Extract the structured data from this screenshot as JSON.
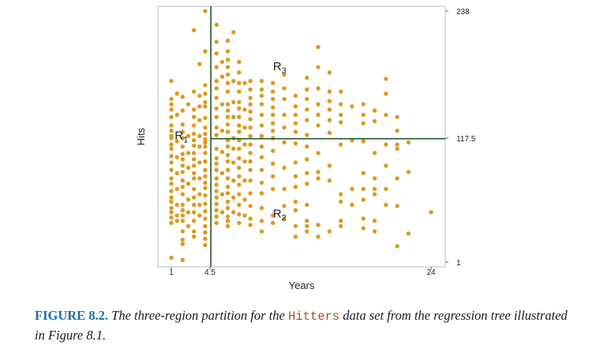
{
  "chart_data": {
    "type": "scatter",
    "xlabel": "Years",
    "ylabel": "Hits",
    "xlim": [
      0,
      25
    ],
    "ylim": [
      0,
      240
    ],
    "x_ticks": [
      "1",
      "4.5",
      "24"
    ],
    "y_ticks": [
      "1",
      "117.5",
      "238"
    ],
    "point_color": "#dc9a1e",
    "line_color": "#1f5a2a",
    "partition": {
      "vertical_split": {
        "variable": "Years",
        "value": 4.5
      },
      "horizontal_split": {
        "variable": "Hits",
        "value": 117.5,
        "applies_when": "Years >= 4.5"
      }
    },
    "regions": [
      {
        "name": "R",
        "subscript": "1",
        "x": 1.3,
        "y": 117
      },
      {
        "name": "R",
        "subscript": "2",
        "x": 10.0,
        "y": 43
      },
      {
        "name": "R",
        "subscript": "3",
        "x": 10.0,
        "y": 182
      }
    ],
    "points": [
      [
        1,
        5
      ],
      [
        2,
        3
      ],
      [
        4,
        238
      ],
      [
        3,
        220
      ],
      [
        1,
        172
      ],
      [
        1,
        155
      ],
      [
        1,
        150
      ],
      [
        1,
        145
      ],
      [
        1,
        138
      ],
      [
        1,
        130
      ],
      [
        1,
        125
      ],
      [
        1,
        120
      ],
      [
        1,
        118
      ],
      [
        1,
        112
      ],
      [
        1,
        108
      ],
      [
        1,
        101
      ],
      [
        1,
        95
      ],
      [
        1,
        88
      ],
      [
        1,
        80
      ],
      [
        1,
        75
      ],
      [
        1,
        68
      ],
      [
        1,
        62
      ],
      [
        1,
        58
      ],
      [
        1,
        52
      ],
      [
        1,
        48
      ],
      [
        1,
        43
      ],
      [
        1,
        38
      ],
      [
        1.5,
        160
      ],
      [
        1.5,
        140
      ],
      [
        1.5,
        115
      ],
      [
        1.5,
        100
      ],
      [
        1.5,
        85
      ],
      [
        1.5,
        70
      ],
      [
        1.5,
        55
      ],
      [
        1.5,
        45
      ],
      [
        1.5,
        40
      ],
      [
        2,
        157
      ],
      [
        2,
        144
      ],
      [
        2,
        131
      ],
      [
        2,
        124
      ],
      [
        2,
        118
      ],
      [
        2,
        110
      ],
      [
        2,
        103
      ],
      [
        2,
        98
      ],
      [
        2,
        92
      ],
      [
        2,
        86
      ],
      [
        2,
        78
      ],
      [
        2,
        72
      ],
      [
        2,
        65
      ],
      [
        2,
        55
      ],
      [
        2,
        50
      ],
      [
        2,
        45
      ],
      [
        2,
        40
      ],
      [
        2,
        30
      ],
      [
        2,
        22
      ],
      [
        2,
        18
      ],
      [
        2.5,
        150
      ],
      [
        2.5,
        120
      ],
      [
        2.5,
        104
      ],
      [
        2.5,
        90
      ],
      [
        2.5,
        75
      ],
      [
        2.5,
        60
      ],
      [
        2.5,
        48
      ],
      [
        2.5,
        35
      ],
      [
        3,
        162
      ],
      [
        3,
        145
      ],
      [
        3,
        138
      ],
      [
        3,
        130
      ],
      [
        3,
        122
      ],
      [
        3,
        116
      ],
      [
        3,
        111
      ],
      [
        3,
        104
      ],
      [
        3,
        98
      ],
      [
        3,
        92
      ],
      [
        3,
        85
      ],
      [
        3,
        80
      ],
      [
        3,
        70
      ],
      [
        3,
        62
      ],
      [
        3,
        55
      ],
      [
        3,
        48
      ],
      [
        3,
        40
      ],
      [
        3,
        30
      ],
      [
        3,
        25
      ],
      [
        3.5,
        188
      ],
      [
        3.5,
        158
      ],
      [
        3.5,
        148
      ],
      [
        3.5,
        135
      ],
      [
        3.5,
        120
      ],
      [
        3.5,
        110
      ],
      [
        3.5,
        95
      ],
      [
        3.5,
        80
      ],
      [
        3.5,
        65
      ],
      [
        3.5,
        55
      ],
      [
        3.5,
        45
      ],
      [
        4,
        200
      ],
      [
        4,
        168
      ],
      [
        4,
        160
      ],
      [
        4,
        152
      ],
      [
        4,
        148
      ],
      [
        4,
        137
      ],
      [
        4,
        128
      ],
      [
        4,
        122
      ],
      [
        4,
        117
      ],
      [
        4,
        114
      ],
      [
        4,
        110
      ],
      [
        4,
        104
      ],
      [
        4,
        96
      ],
      [
        4,
        88
      ],
      [
        4,
        82
      ],
      [
        4,
        76
      ],
      [
        4,
        71
      ],
      [
        4,
        64
      ],
      [
        4,
        56
      ],
      [
        4,
        49
      ],
      [
        4,
        42
      ],
      [
        4,
        35
      ],
      [
        4,
        29
      ],
      [
        4,
        23
      ],
      [
        4,
        17
      ],
      [
        5,
        225
      ],
      [
        5,
        209
      ],
      [
        5,
        198
      ],
      [
        5,
        185
      ],
      [
        5,
        172
      ],
      [
        5,
        165
      ],
      [
        5,
        156
      ],
      [
        5,
        146
      ],
      [
        5,
        138
      ],
      [
        5,
        128
      ],
      [
        5,
        121
      ],
      [
        5,
        108
      ],
      [
        5,
        99
      ],
      [
        5,
        94
      ],
      [
        5,
        88
      ],
      [
        5,
        80
      ],
      [
        5,
        74
      ],
      [
        5,
        68
      ],
      [
        5,
        62
      ],
      [
        5,
        56
      ],
      [
        5,
        50
      ],
      [
        5,
        44
      ],
      [
        5,
        38
      ],
      [
        5.5,
        190
      ],
      [
        5.5,
        176
      ],
      [
        5.5,
        150
      ],
      [
        5.5,
        125
      ],
      [
        5.5,
        105
      ],
      [
        5.5,
        85
      ],
      [
        5.5,
        65
      ],
      [
        5.5,
        48
      ],
      [
        6,
        210
      ],
      [
        6,
        200
      ],
      [
        6,
        192
      ],
      [
        6,
        185
      ],
      [
        6,
        178
      ],
      [
        6,
        170
      ],
      [
        6,
        162
      ],
      [
        6,
        150
      ],
      [
        6,
        144
      ],
      [
        6,
        138
      ],
      [
        6,
        131
      ],
      [
        6,
        124
      ],
      [
        6,
        116
      ],
      [
        6,
        110
      ],
      [
        6,
        102
      ],
      [
        6,
        96
      ],
      [
        6,
        88
      ],
      [
        6,
        80
      ],
      [
        6,
        72
      ],
      [
        6,
        66
      ],
      [
        6,
        58
      ],
      [
        6,
        52
      ],
      [
        6,
        44
      ],
      [
        6,
        40
      ],
      [
        6,
        35
      ],
      [
        6.5,
        218
      ],
      [
        6.5,
        172
      ],
      [
        6.5,
        152
      ],
      [
        6.5,
        138
      ],
      [
        6.5,
        118
      ],
      [
        6.5,
        108
      ],
      [
        6.5,
        95
      ],
      [
        6.5,
        78
      ],
      [
        6.5,
        62
      ],
      [
        6.5,
        48
      ],
      [
        7,
        190
      ],
      [
        7,
        180
      ],
      [
        7,
        170
      ],
      [
        7,
        162
      ],
      [
        7,
        152
      ],
      [
        7,
        146
      ],
      [
        7,
        138
      ],
      [
        7,
        130
      ],
      [
        7,
        124
      ],
      [
        7,
        116
      ],
      [
        7,
        108
      ],
      [
        7,
        99
      ],
      [
        7,
        90
      ],
      [
        7,
        82
      ],
      [
        7,
        74
      ],
      [
        7,
        65
      ],
      [
        7,
        55
      ],
      [
        7,
        46
      ],
      [
        7,
        38
      ],
      [
        7.5,
        170
      ],
      [
        7.5,
        145
      ],
      [
        7.5,
        128
      ],
      [
        7.5,
        112
      ],
      [
        7.5,
        96
      ],
      [
        7.5,
        78
      ],
      [
        7.5,
        60
      ],
      [
        7.5,
        45
      ],
      [
        8,
        172
      ],
      [
        8,
        164
      ],
      [
        8,
        156
      ],
      [
        8,
        150
      ],
      [
        8,
        143
      ],
      [
        8,
        136
      ],
      [
        8,
        128
      ],
      [
        8,
        120
      ],
      [
        8,
        112
      ],
      [
        8,
        104
      ],
      [
        8,
        96
      ],
      [
        8,
        88
      ],
      [
        8,
        78
      ],
      [
        8,
        66
      ],
      [
        8,
        54
      ],
      [
        8,
        42
      ],
      [
        8,
        36
      ],
      [
        9,
        172
      ],
      [
        9,
        164
      ],
      [
        9,
        158
      ],
      [
        9,
        150
      ],
      [
        9,
        140
      ],
      [
        9,
        130
      ],
      [
        9,
        120
      ],
      [
        9,
        110
      ],
      [
        9,
        100
      ],
      [
        9,
        88
      ],
      [
        9,
        76
      ],
      [
        9,
        66
      ],
      [
        9,
        52
      ],
      [
        9,
        40
      ],
      [
        9,
        30
      ],
      [
        10,
        170
      ],
      [
        10,
        162
      ],
      [
        10,
        155
      ],
      [
        10,
        147
      ],
      [
        10,
        140
      ],
      [
        10,
        132
      ],
      [
        10,
        125
      ],
      [
        10,
        118
      ],
      [
        10,
        106
      ],
      [
        10,
        94
      ],
      [
        10,
        82
      ],
      [
        10,
        70
      ],
      [
        10,
        45
      ],
      [
        10,
        38
      ],
      [
        11,
        178
      ],
      [
        11,
        165
      ],
      [
        11,
        155
      ],
      [
        11,
        140
      ],
      [
        11,
        128
      ],
      [
        11,
        114
      ],
      [
        11,
        90
      ],
      [
        11,
        70
      ],
      [
        11,
        54
      ],
      [
        11,
        42
      ],
      [
        12,
        158
      ],
      [
        12,
        148
      ],
      [
        12,
        140
      ],
      [
        12,
        132
      ],
      [
        12,
        124
      ],
      [
        12,
        113
      ],
      [
        12,
        95
      ],
      [
        12,
        82
      ],
      [
        12,
        72
      ],
      [
        12,
        58
      ],
      [
        12,
        50
      ],
      [
        12,
        35
      ],
      [
        12,
        25
      ],
      [
        13,
        175
      ],
      [
        13,
        164
      ],
      [
        13,
        155
      ],
      [
        13,
        145
      ],
      [
        13,
        135
      ],
      [
        13,
        121
      ],
      [
        13,
        110
      ],
      [
        13,
        98
      ],
      [
        13,
        85
      ],
      [
        13,
        75
      ],
      [
        13,
        55
      ],
      [
        13,
        40
      ],
      [
        13,
        35
      ],
      [
        13,
        30
      ],
      [
        14,
        204
      ],
      [
        14,
        185
      ],
      [
        14,
        165
      ],
      [
        14,
        150
      ],
      [
        14,
        140
      ],
      [
        14,
        130
      ],
      [
        14,
        104
      ],
      [
        14,
        86
      ],
      [
        14,
        80
      ],
      [
        14,
        36
      ],
      [
        14,
        25
      ],
      [
        15,
        180
      ],
      [
        15,
        162
      ],
      [
        15,
        153
      ],
      [
        15,
        145
      ],
      [
        15,
        135
      ],
      [
        15,
        123
      ],
      [
        15,
        92
      ],
      [
        15,
        78
      ],
      [
        15,
        30
      ],
      [
        16,
        162
      ],
      [
        16,
        150
      ],
      [
        16,
        140
      ],
      [
        16,
        133
      ],
      [
        16,
        112
      ],
      [
        16,
        65
      ],
      [
        16,
        58
      ],
      [
        16,
        40
      ],
      [
        16,
        35
      ],
      [
        17,
        148
      ],
      [
        17,
        116
      ],
      [
        17,
        70
      ],
      [
        17,
        55
      ],
      [
        18,
        150
      ],
      [
        18,
        140
      ],
      [
        18,
        132
      ],
      [
        18,
        115
      ],
      [
        18,
        85
      ],
      [
        18,
        70
      ],
      [
        18,
        60
      ],
      [
        18,
        42
      ],
      [
        18,
        33
      ],
      [
        19,
        144
      ],
      [
        19,
        134
      ],
      [
        19,
        104
      ],
      [
        19,
        80
      ],
      [
        19,
        70
      ],
      [
        19,
        65
      ],
      [
        19,
        40
      ],
      [
        19,
        30
      ],
      [
        20,
        174
      ],
      [
        20,
        160
      ],
      [
        20,
        140
      ],
      [
        20,
        112
      ],
      [
        20,
        92
      ],
      [
        20,
        70
      ],
      [
        20,
        55
      ],
      [
        21,
        138
      ],
      [
        21,
        125
      ],
      [
        21,
        112
      ],
      [
        21,
        108
      ],
      [
        21,
        80
      ],
      [
        21,
        54
      ],
      [
        21,
        16
      ],
      [
        22,
        114
      ],
      [
        22,
        86
      ],
      [
        22,
        28
      ],
      [
        24,
        48
      ]
    ]
  },
  "caption": {
    "label": "FIGURE 8.2.",
    "text_before": "The three-region partition for the",
    "dataset": "Hitters",
    "text_after": "data set from the regression tree illustrated in Figure 8.1."
  }
}
